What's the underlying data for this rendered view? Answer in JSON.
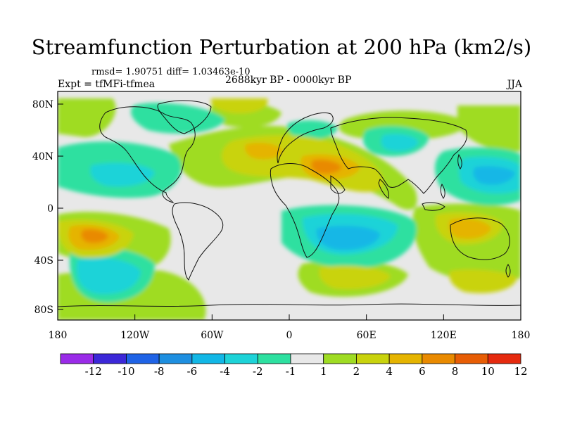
{
  "title": "Streamfunction Perturbation at 200 hPa (km2/s)",
  "stats": "rmsd= 1.90751  diff= 1.03463e-10",
  "expt": "Expt = tfMFi-tfmea",
  "period": "2688kyr BP - 0000kyr BP",
  "season": "JJA",
  "lat_labels": [
    "80N",
    "40N",
    "0",
    "40S",
    "80S"
  ],
  "lon_labels": [
    "180",
    "120W",
    "60W",
    "0",
    "60E",
    "120E",
    "180"
  ],
  "colorbar": {
    "labels": [
      "-12",
      "-10",
      "-8",
      "-6",
      "-4",
      "-2",
      "-1",
      "1",
      "2",
      "4",
      "6",
      "8",
      "10",
      "12"
    ],
    "colors": [
      "#9a2be8",
      "#3c28d8",
      "#1f63e6",
      "#1e8fe0",
      "#12b7e6",
      "#1dd3d8",
      "#2de0a0",
      "#e8e8e8",
      "#9fdc23",
      "#c9d30d",
      "#e5b400",
      "#e98a00",
      "#e75d05",
      "#e52a0e"
    ]
  },
  "colors": {
    "background_field": "#e8e8e8",
    "coastline": "#111111"
  }
}
